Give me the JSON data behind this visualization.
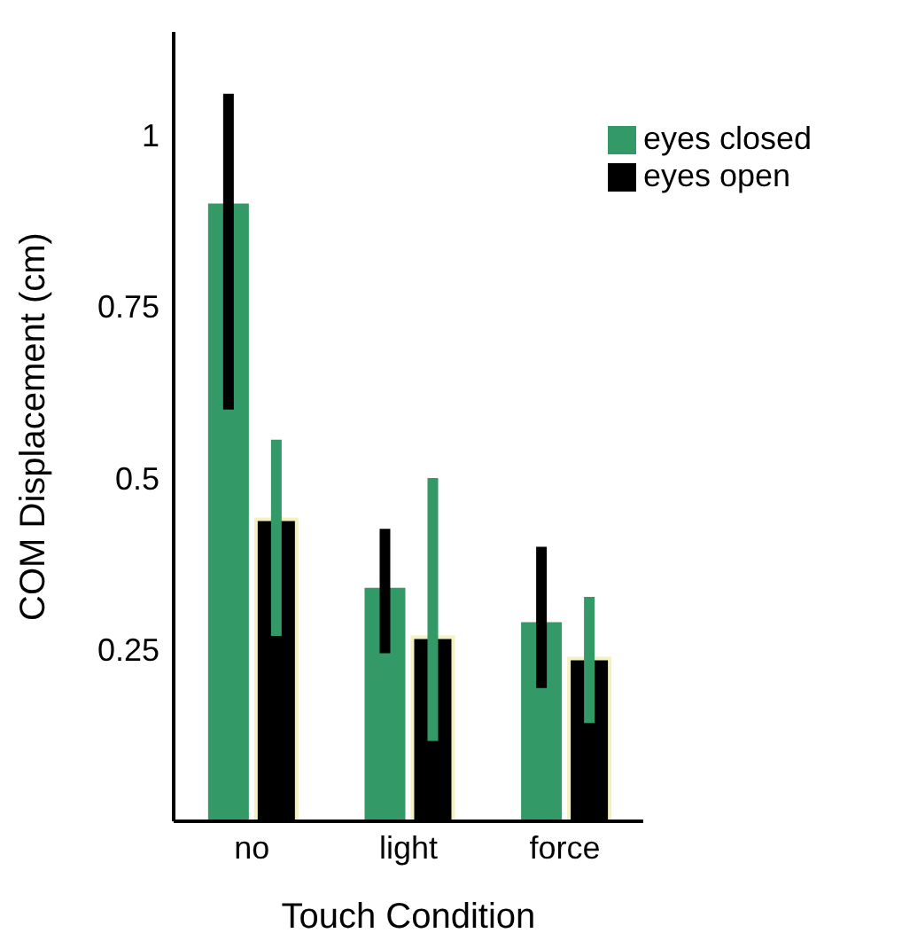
{
  "chart_data": {
    "type": "bar",
    "xlabel": "Touch Condition",
    "ylabel": "COM Displacement (cm)",
    "categories": [
      "no",
      "light",
      "force"
    ],
    "series": [
      {
        "name": "eyes closed",
        "color": "#339966",
        "values": [
          0.9,
          0.34,
          0.29
        ],
        "errors": [
          [
            0.6,
            1.06
          ],
          [
            0.245,
            0.426
          ],
          [
            0.194,
            0.4
          ]
        ]
      },
      {
        "name": "eyes open",
        "color": "#000000",
        "values": [
          0.44,
          0.268,
          0.237
        ],
        "errors": [
          [
            0.27,
            0.556
          ],
          [
            0.117,
            0.5
          ],
          [
            0.143,
            0.327
          ]
        ]
      }
    ],
    "ylim": [
      0,
      1.15
    ],
    "yticks": [
      0.25,
      0.5,
      0.75,
      1
    ],
    "legend": "top right",
    "grid": false
  }
}
